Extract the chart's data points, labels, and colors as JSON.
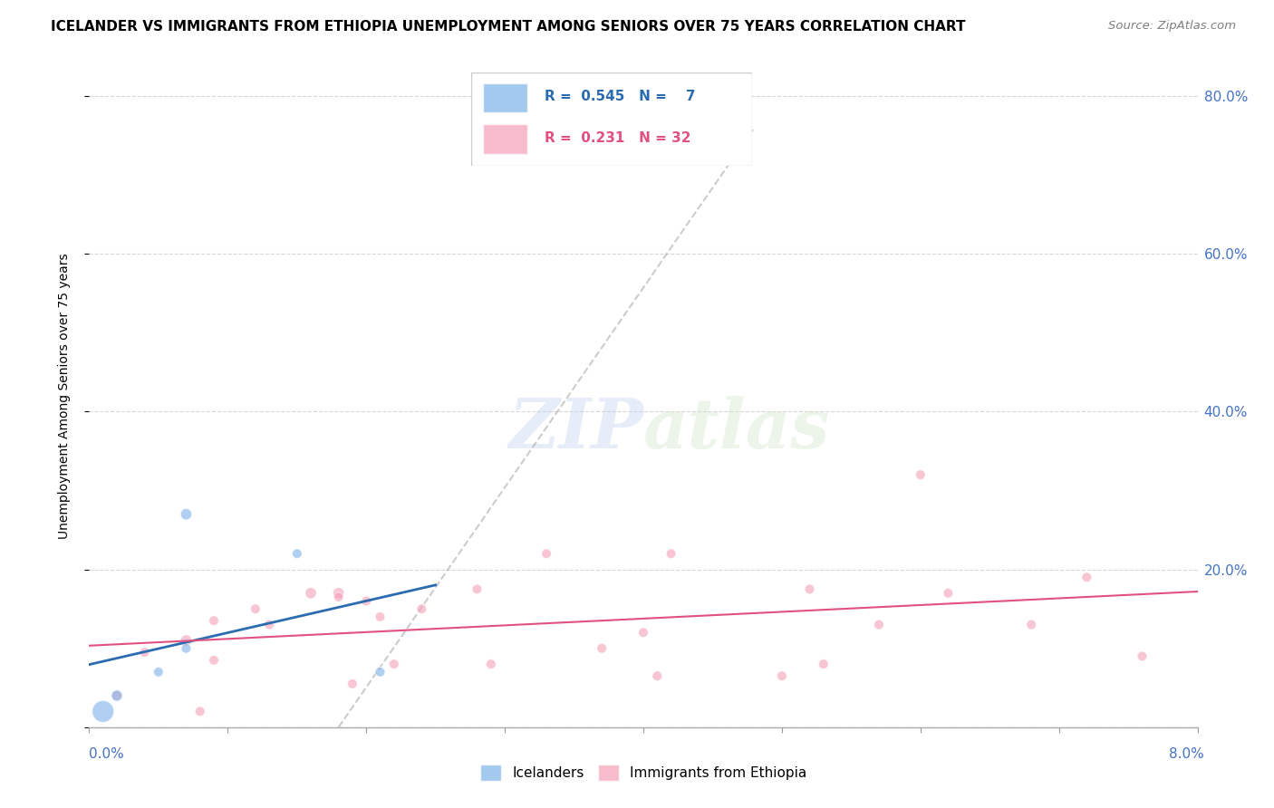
{
  "title": "ICELANDER VS IMMIGRANTS FROM ETHIOPIA UNEMPLOYMENT AMONG SENIORS OVER 75 YEARS CORRELATION CHART",
  "source": "Source: ZipAtlas.com",
  "ylabel": "Unemployment Among Seniors over 75 years",
  "xlim": [
    0.0,
    0.08
  ],
  "ylim": [
    0.0,
    0.84
  ],
  "yticks": [
    0.0,
    0.2,
    0.4,
    0.6,
    0.8
  ],
  "ytick_labels": [
    "",
    "20.0%",
    "40.0%",
    "60.0%",
    "80.0%"
  ],
  "icelanders_x": [
    0.001,
    0.002,
    0.005,
    0.007,
    0.007,
    0.015,
    0.021
  ],
  "icelanders_y": [
    0.02,
    0.04,
    0.07,
    0.27,
    0.1,
    0.22,
    0.07
  ],
  "icelanders_size": [
    300,
    80,
    60,
    80,
    60,
    60,
    60
  ],
  "ethiopia_x": [
    0.002,
    0.004,
    0.007,
    0.008,
    0.009,
    0.009,
    0.012,
    0.013,
    0.016,
    0.018,
    0.018,
    0.019,
    0.02,
    0.021,
    0.022,
    0.024,
    0.028,
    0.029,
    0.033,
    0.037,
    0.04,
    0.041,
    0.042,
    0.05,
    0.052,
    0.053,
    0.057,
    0.06,
    0.062,
    0.068,
    0.072,
    0.076
  ],
  "ethiopia_y": [
    0.04,
    0.095,
    0.11,
    0.02,
    0.135,
    0.085,
    0.15,
    0.13,
    0.17,
    0.17,
    0.165,
    0.055,
    0.16,
    0.14,
    0.08,
    0.15,
    0.175,
    0.08,
    0.22,
    0.1,
    0.12,
    0.065,
    0.22,
    0.065,
    0.175,
    0.08,
    0.13,
    0.32,
    0.17,
    0.13,
    0.19,
    0.09
  ],
  "ethiopia_size": [
    60,
    60,
    80,
    60,
    60,
    60,
    60,
    60,
    80,
    80,
    60,
    60,
    60,
    60,
    60,
    60,
    60,
    60,
    60,
    60,
    60,
    60,
    60,
    60,
    60,
    60,
    60,
    60,
    60,
    60,
    60,
    60
  ],
  "icelander_color": "#7EB2E8",
  "ethiopia_color": "#F4A0B5",
  "icelander_line_color": "#2B6CB0",
  "ethiopia_line_color": "#E05080",
  "legend_icelander_r": "0.545",
  "legend_icelander_n": "7",
  "legend_ethiopia_r": "0.231",
  "legend_ethiopia_n": "32",
  "watermark_zip": "ZIP",
  "watermark_atlas": "atlas",
  "background_color": "#FFFFFF"
}
